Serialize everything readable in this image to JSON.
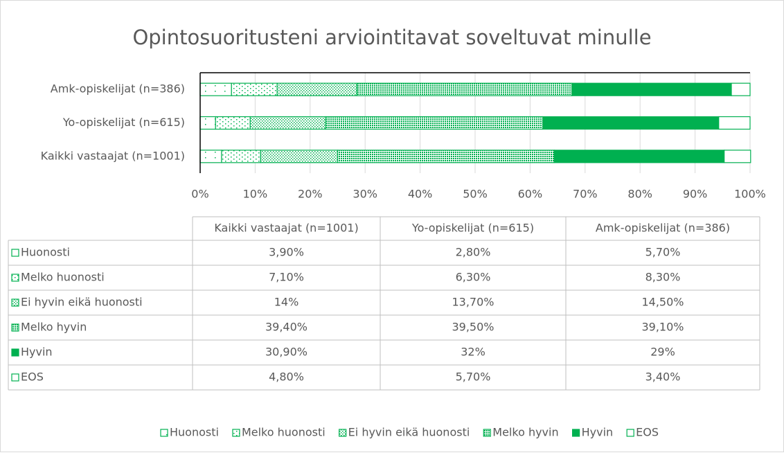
{
  "chart_data": {
    "type": "stacked_bar_horizontal",
    "title": "Opintosuoritusteni arviointitavat soveltuvat minulle",
    "categories": [
      "Kaikki vastaajat (n=1001)",
      "Yo-opiskelijat (n=615)",
      "Amk-opiskelijat (n=386)"
    ],
    "series": [
      {
        "name": "Huonosti",
        "color": "#00b050",
        "values": [
          3.9,
          2.8,
          5.7
        ],
        "value_labels": [
          "3,90%",
          "2,80%",
          "5,70%"
        ]
      },
      {
        "name": "Melko huonosti",
        "color": "#00b050",
        "values": [
          7.1,
          6.3,
          8.3
        ],
        "value_labels": [
          "7,10%",
          "6,30%",
          "8,30%"
        ]
      },
      {
        "name": "Ei hyvin eikä huonosti",
        "color": "#00b050",
        "values": [
          14,
          13.7,
          14.5
        ],
        "value_labels": [
          "14%",
          "13,70%",
          "14,50%"
        ]
      },
      {
        "name": "Melko hyvin",
        "color": "#00b050",
        "values": [
          39.4,
          39.5,
          39.1
        ],
        "value_labels": [
          "39,40%",
          "39,50%",
          "39,10%"
        ]
      },
      {
        "name": "Hyvin",
        "color": "#00b050",
        "values": [
          30.9,
          32,
          29
        ],
        "value_labels": [
          "30,90%",
          "32%",
          "29%"
        ]
      },
      {
        "name": "EOS",
        "color": "#ffffff",
        "values": [
          4.8,
          5.7,
          3.4
        ],
        "value_labels": [
          "4,80%",
          "5,70%",
          "3,40%"
        ]
      }
    ],
    "xlim": [
      0,
      100
    ],
    "xticks": [
      {
        "value": 0,
        "label": "0%"
      },
      {
        "value": 10,
        "label": "10%"
      },
      {
        "value": 20,
        "label": "20%"
      },
      {
        "value": 30,
        "label": "30%"
      },
      {
        "value": 40,
        "label": "40%"
      },
      {
        "value": 50,
        "label": "50%"
      },
      {
        "value": 60,
        "label": "60%"
      },
      {
        "value": 70,
        "label": "70%"
      },
      {
        "value": 80,
        "label": "80%"
      },
      {
        "value": 90,
        "label": "90%"
      },
      {
        "value": 100,
        "label": "100%"
      }
    ],
    "grid": true,
    "legend": "bottom"
  }
}
